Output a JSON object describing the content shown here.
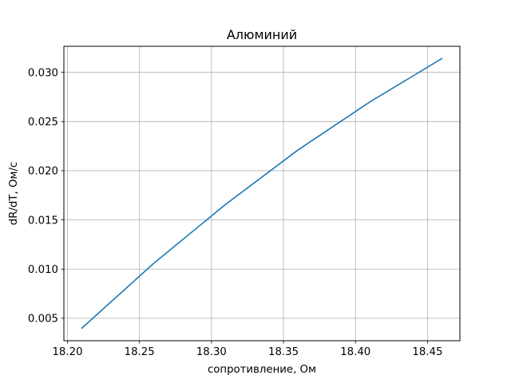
{
  "chart_data": {
    "type": "line",
    "title": "Алюминий",
    "xlabel": "сопротивление, Ом",
    "ylabel": "dR/dT, Ом/с",
    "xlim": [
      18.1975,
      18.4725
    ],
    "ylim": [
      0.00272,
      0.03265
    ],
    "grid": true,
    "xticks": [
      18.2,
      18.25,
      18.3,
      18.35,
      18.4,
      18.45
    ],
    "xtick_labels": [
      "18.20",
      "18.25",
      "18.30",
      "18.35",
      "18.40",
      "18.45"
    ],
    "yticks": [
      0.005,
      0.01,
      0.015,
      0.02,
      0.025,
      0.03
    ],
    "ytick_labels": [
      "0.005",
      "0.010",
      "0.015",
      "0.020",
      "0.025",
      "0.030"
    ],
    "series": [
      {
        "color": "#1f77b4",
        "x": [
          18.21,
          18.26,
          18.31,
          18.36,
          18.41,
          18.46
        ],
        "y": [
          0.004,
          0.0106,
          0.0166,
          0.0221,
          0.027,
          0.0314
        ]
      }
    ]
  }
}
